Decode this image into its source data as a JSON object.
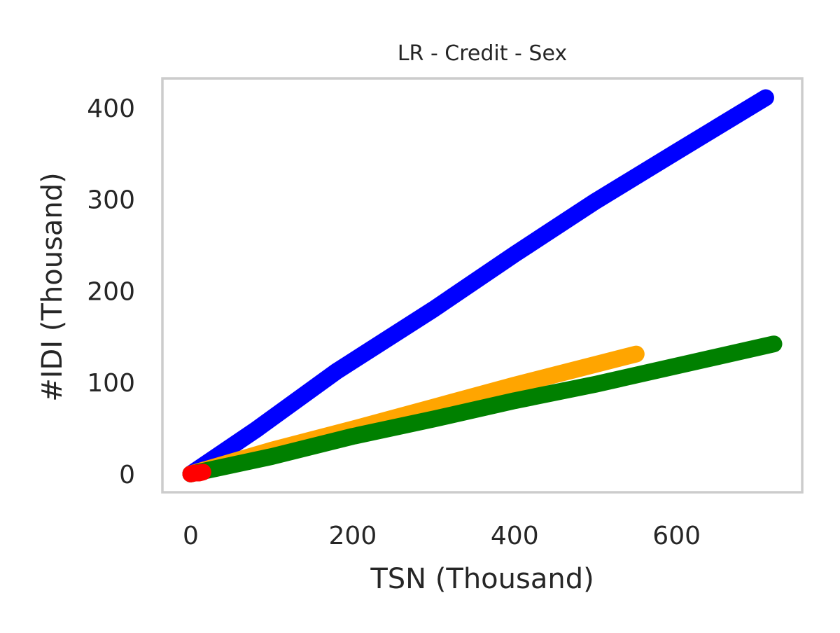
{
  "chart_data": {
    "type": "line",
    "title": "LR - Credit - Sex",
    "xlabel": "TSN (Thousand)",
    "ylabel": "#IDI (Thousand)",
    "xlim": [
      -35,
      755
    ],
    "ylim": [
      -20,
      432
    ],
    "xticks": [
      0,
      200,
      400,
      600
    ],
    "yticks": [
      0,
      100,
      200,
      300,
      400
    ],
    "xtick_labels": [
      "0",
      "200",
      "400",
      "600"
    ],
    "ytick_labels": [
      "0",
      "100",
      "200",
      "300",
      "400"
    ],
    "grid": false,
    "legend": "none",
    "series": [
      {
        "color": "#0000ff",
        "x": [
          0,
          80,
          180,
          300,
          400,
          500,
          600,
          710
        ],
        "y": [
          0,
          48,
          112,
          180,
          240,
          298,
          352,
          411
        ]
      },
      {
        "color": "#ffa500",
        "x": [
          0,
          100,
          200,
          300,
          400,
          550
        ],
        "y": [
          0,
          26,
          49,
          73,
          97,
          131
        ]
      },
      {
        "color": "#008000",
        "x": [
          0,
          100,
          200,
          300,
          400,
          500,
          600,
          720
        ],
        "y": [
          0,
          19,
          41,
          60,
          80,
          98,
          118,
          142
        ]
      },
      {
        "color": "#ff0000",
        "x": [
          0,
          5,
          10,
          15
        ],
        "y": [
          0,
          1,
          1,
          2
        ]
      }
    ]
  }
}
